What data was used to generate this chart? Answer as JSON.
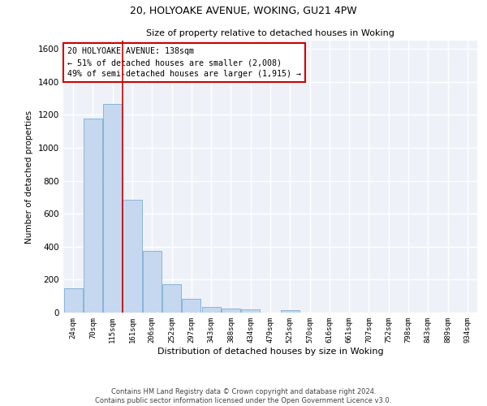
{
  "title_line1": "20, HOLYOAKE AVENUE, WOKING, GU21 4PW",
  "title_line2": "Size of property relative to detached houses in Woking",
  "xlabel": "Distribution of detached houses by size in Woking",
  "ylabel": "Number of detached properties",
  "categories": [
    "24sqm",
    "70sqm",
    "115sqm",
    "161sqm",
    "206sqm",
    "252sqm",
    "297sqm",
    "343sqm",
    "388sqm",
    "434sqm",
    "479sqm",
    "525sqm",
    "570sqm",
    "616sqm",
    "661sqm",
    "707sqm",
    "752sqm",
    "798sqm",
    "843sqm",
    "889sqm",
    "934sqm"
  ],
  "values": [
    150,
    1175,
    1265,
    685,
    375,
    170,
    85,
    35,
    25,
    20,
    0,
    15,
    0,
    0,
    0,
    0,
    0,
    0,
    0,
    0,
    0
  ],
  "bar_color": "#c5d8ef",
  "bar_edge_color": "#7aaed4",
  "vline_color": "#cc0000",
  "annotation_text": "20 HOLYOAKE AVENUE: 138sqm\n← 51% of detached houses are smaller (2,008)\n49% of semi-detached houses are larger (1,915) →",
  "annotation_box_color": "#ffffff",
  "annotation_box_edge_color": "#cc0000",
  "ylim": [
    0,
    1650
  ],
  "yticks": [
    0,
    200,
    400,
    600,
    800,
    1000,
    1200,
    1400,
    1600
  ],
  "bg_color": "#eef2f8",
  "grid_color": "#ffffff",
  "footer_line1": "Contains HM Land Registry data © Crown copyright and database right 2024.",
  "footer_line2": "Contains public sector information licensed under the Open Government Licence v3.0."
}
